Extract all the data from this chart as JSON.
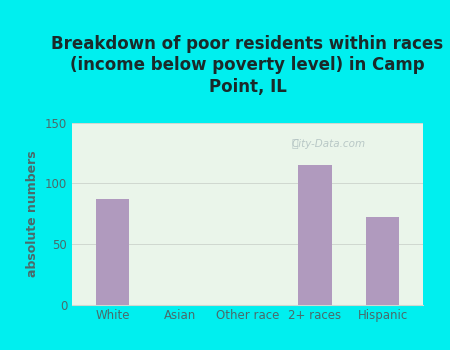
{
  "categories": [
    "White",
    "Asian",
    "Other race",
    "2+ races",
    "Hispanic"
  ],
  "values": [
    87,
    0,
    0,
    115,
    72
  ],
  "bar_color": "#b09abe",
  "title_line1": "Breakdown of poor residents within races",
  "title_line2": "(income below poverty level) in Camp",
  "title_line3": "Point, IL",
  "ylabel": "absolute numbers",
  "ylim": [
    0,
    150
  ],
  "yticks": [
    0,
    50,
    100,
    150
  ],
  "bg_outer": "#00efef",
  "bg_plot_topleft": "#f0fff0",
  "bg_plot_bottomright": "#e8f8e8",
  "title_color": "#1a2a2a",
  "axis_color": "#4a6a6a",
  "grid_color": "#d0d8d0",
  "watermark": "City-Data.com",
  "title_fontsize": 12,
  "ylabel_fontsize": 9,
  "tick_fontsize": 8.5
}
